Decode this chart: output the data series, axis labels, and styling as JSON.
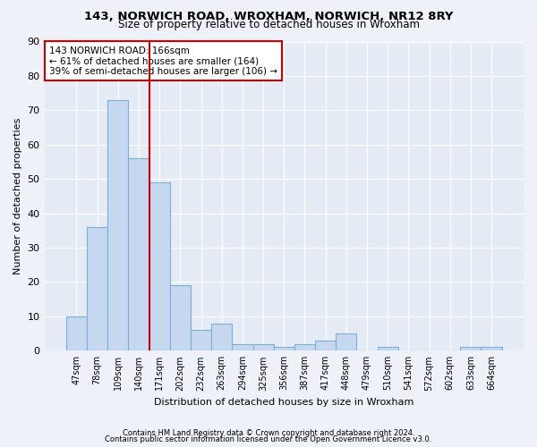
{
  "title1": "143, NORWICH ROAD, WROXHAM, NORWICH, NR12 8RY",
  "title2": "Size of property relative to detached houses in Wroxham",
  "xlabel": "Distribution of detached houses by size in Wroxham",
  "ylabel": "Number of detached properties",
  "bar_labels": [
    "47sqm",
    "78sqm",
    "109sqm",
    "140sqm",
    "171sqm",
    "202sqm",
    "232sqm",
    "263sqm",
    "294sqm",
    "325sqm",
    "356sqm",
    "387sqm",
    "417sqm",
    "448sqm",
    "479sqm",
    "510sqm",
    "541sqm",
    "572sqm",
    "602sqm",
    "633sqm",
    "664sqm"
  ],
  "bar_values": [
    10,
    36,
    73,
    56,
    49,
    19,
    6,
    8,
    2,
    2,
    1,
    2,
    3,
    5,
    0,
    1,
    0,
    0,
    0,
    1,
    1
  ],
  "bar_color": "#c5d8f0",
  "bar_edgecolor": "#7bafd4",
  "ylim": [
    0,
    90
  ],
  "yticks": [
    0,
    10,
    20,
    30,
    40,
    50,
    60,
    70,
    80,
    90
  ],
  "vline_x": 4.0,
  "vline_color": "#cc0000",
  "annotation_title": "143 NORWICH ROAD: 166sqm",
  "annotation_line1": "← 61% of detached houses are smaller (164)",
  "annotation_line2": "39% of semi-detached houses are larger (106) →",
  "annotation_box_edgecolor": "#cc0000",
  "footer1": "Contains HM Land Registry data © Crown copyright and database right 2024.",
  "footer2": "Contains public sector information licensed under the Open Government Licence v3.0.",
  "bg_color": "#eef2f8",
  "plot_bg_color": "#e4ebf5"
}
